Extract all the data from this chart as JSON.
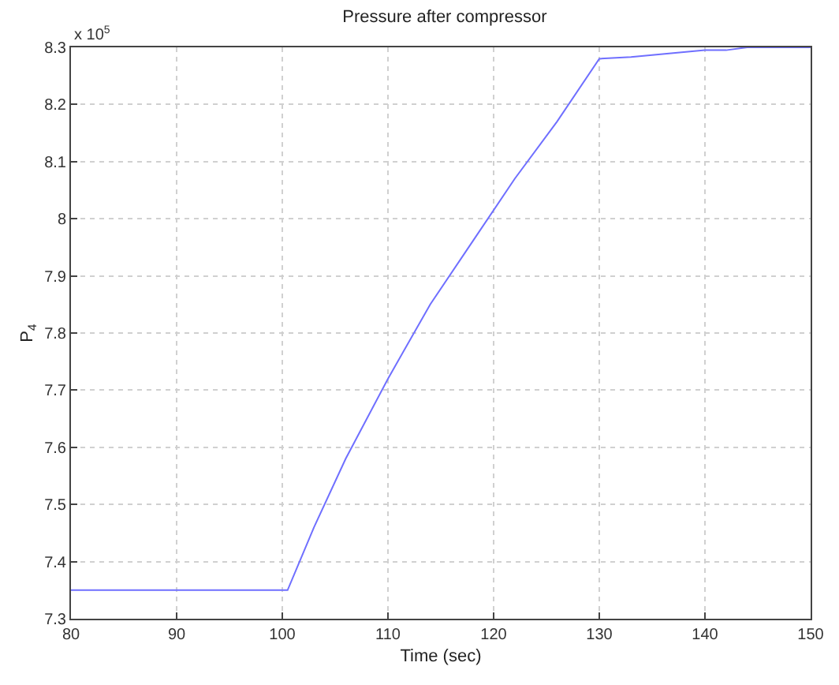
{
  "chart_data": {
    "type": "line",
    "title": "Pressure after compressor",
    "xlabel": "Time (sec)",
    "ylabel": "P$_{4}$",
    "annotations": [
      "x 10$^{5}$"
    ],
    "x": [
      80,
      100.5,
      103,
      106,
      110,
      114,
      118,
      122,
      126,
      130,
      133,
      137,
      140,
      142,
      144,
      150
    ],
    "series": [
      {
        "color": "#6f6fff",
        "values": [
          7.35,
          7.35,
          7.46,
          7.58,
          7.72,
          7.85,
          7.96,
          8.07,
          8.17,
          8.28,
          8.283,
          8.29,
          8.295,
          8.295,
          8.3,
          8.3
        ]
      }
    ],
    "xlim": [
      80,
      150
    ],
    "xticks": [
      80,
      90,
      100,
      110,
      120,
      130,
      140,
      150
    ],
    "ylim": [
      7.3,
      8.3
    ],
    "yticks": [
      7.3,
      7.4,
      7.5,
      7.6,
      7.7,
      7.8,
      7.9,
      8,
      8.1,
      8.2,
      8.3
    ],
    "grid": true,
    "legend": false,
    "marker": "none",
    "line_style": "solid"
  }
}
